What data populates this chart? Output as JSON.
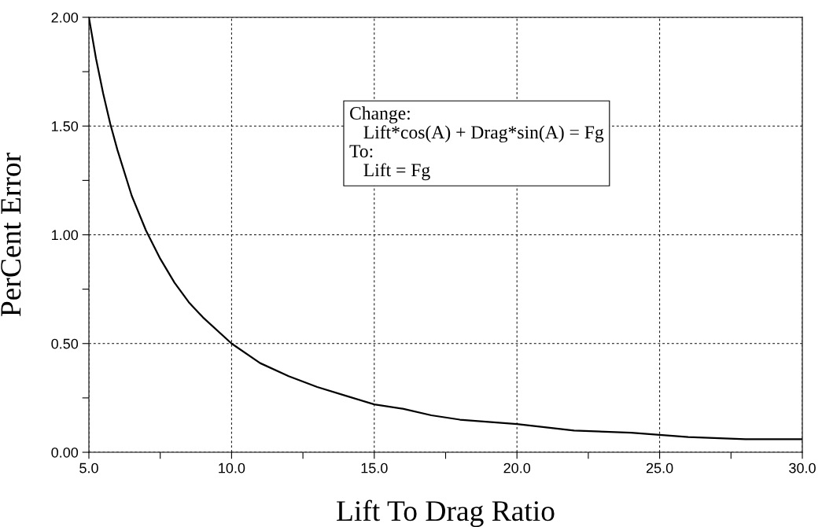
{
  "chart_data": {
    "type": "line",
    "xlabel": "Lift To Drag Ratio",
    "ylabel": "PerCent Error",
    "annotations": [
      "Change:\n   Lift*cos(A) + Drag*sin(A) = Fg\nTo:\n   Lift = Fg"
    ],
    "x": [
      5,
      5.25,
      5.5,
      5.75,
      6,
      6.5,
      7,
      7.5,
      8,
      8.5,
      9,
      10,
      11,
      12,
      13,
      14,
      15,
      16,
      17,
      18,
      20,
      22,
      24,
      26,
      28,
      30
    ],
    "series": [
      {
        "color": "#000000",
        "values": [
          2.0,
          1.81,
          1.65,
          1.51,
          1.39,
          1.18,
          1.02,
          0.89,
          0.78,
          0.69,
          0.62,
          0.5,
          0.41,
          0.35,
          0.3,
          0.26,
          0.22,
          0.2,
          0.17,
          0.15,
          0.13,
          0.1,
          0.09,
          0.07,
          0.06,
          0.06
        ]
      }
    ],
    "xlim": [
      5,
      30
    ],
    "xticks": [
      {
        "value": 5,
        "label": "5.0"
      },
      {
        "value": 7.5,
        "label": null
      },
      {
        "value": 10,
        "label": "10.0"
      },
      {
        "value": 12.5,
        "label": null
      },
      {
        "value": 15,
        "label": "15.0"
      },
      {
        "value": 17.5,
        "label": null
      },
      {
        "value": 20,
        "label": "20.0"
      },
      {
        "value": 22.5,
        "label": null
      },
      {
        "value": 25,
        "label": "25.0"
      },
      {
        "value": 27.5,
        "label": null
      },
      {
        "value": 30,
        "label": "30.0"
      }
    ],
    "ylim": [
      0,
      2
    ],
    "yticks": [
      {
        "value": 0,
        "label": "0.00"
      },
      {
        "value": 0.25,
        "label": null
      },
      {
        "value": 0.5,
        "label": "0.50"
      },
      {
        "value": 0.75,
        "label": null
      },
      {
        "value": 1,
        "label": "1.00"
      },
      {
        "value": 1.25,
        "label": null
      },
      {
        "value": 1.5,
        "label": "1.50"
      },
      {
        "value": 1.75,
        "label": null
      },
      {
        "value": 2,
        "label": "2.00"
      }
    ],
    "grid": true,
    "line_style": "solid",
    "marker": "none"
  }
}
